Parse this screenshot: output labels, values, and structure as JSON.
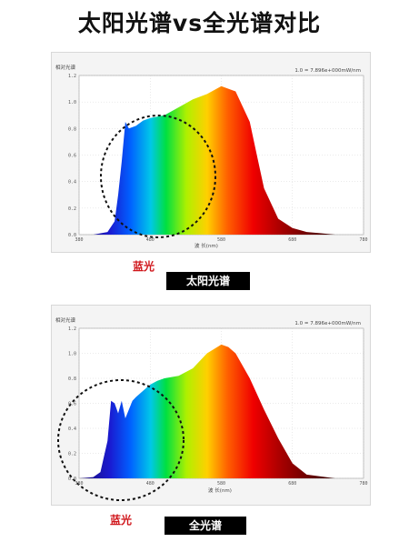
{
  "page_title": "太阳光谱vs全光谱对比",
  "charts": [
    {
      "id": "sun",
      "ylabel": "相对光谱",
      "formula": "1.0 = 7.896e+000mW/nm",
      "xlabel": "波 长(nm)",
      "x_ticks": [
        "380",
        "480",
        "580",
        "680",
        "780"
      ],
      "y_ticks": [
        "0.0",
        "0.2",
        "0.4",
        "0.6",
        "0.8",
        "1.0",
        "1.2"
      ],
      "blue_label": "蓝光",
      "tag": "太阳光谱"
    },
    {
      "id": "full",
      "ylabel": "相对光谱",
      "formula": "1.0 = 7.896e+000mW/nm",
      "xlabel": "波 长(nm)",
      "x_ticks": [
        "380",
        "480",
        "580",
        "680",
        "780"
      ],
      "y_ticks": [
        "0.0",
        "0.2",
        "0.4",
        "0.6",
        "0.8",
        "1.0",
        "1.2"
      ],
      "blue_label": "蓝光",
      "tag": "全光谱"
    }
  ],
  "chart_data": [
    {
      "type": "area",
      "x": [
        380,
        400,
        420,
        430,
        435,
        440,
        445,
        450,
        460,
        470,
        480,
        500,
        520,
        540,
        560,
        580,
        600,
        620,
        630,
        640,
        660,
        680,
        700,
        720,
        740
      ],
      "values": [
        0.0,
        0.0,
        0.02,
        0.1,
        0.3,
        0.55,
        0.85,
        0.8,
        0.82,
        0.86,
        0.88,
        0.9,
        0.96,
        1.02,
        1.06,
        1.12,
        1.08,
        0.85,
        0.6,
        0.35,
        0.12,
        0.05,
        0.02,
        0.01,
        0.0
      ],
      "xlim": [
        380,
        780
      ],
      "ylim": [
        0,
        1.2
      ],
      "xlabel": "波 长(nm)",
      "ylabel": "相对光谱"
    },
    {
      "type": "area",
      "x": [
        380,
        400,
        410,
        420,
        425,
        430,
        435,
        440,
        445,
        450,
        455,
        460,
        470,
        480,
        490,
        500,
        520,
        540,
        560,
        580,
        590,
        600,
        620,
        640,
        660,
        680,
        700,
        740
      ],
      "values": [
        0.0,
        0.01,
        0.05,
        0.3,
        0.62,
        0.6,
        0.52,
        0.62,
        0.48,
        0.55,
        0.62,
        0.65,
        0.7,
        0.75,
        0.78,
        0.8,
        0.82,
        0.88,
        1.0,
        1.07,
        1.05,
        1.0,
        0.8,
        0.55,
        0.32,
        0.12,
        0.03,
        0.0
      ],
      "xlim": [
        380,
        780
      ],
      "ylim": [
        0,
        1.2
      ],
      "xlabel": "波 长(nm)",
      "ylabel": "相对光谱"
    }
  ]
}
